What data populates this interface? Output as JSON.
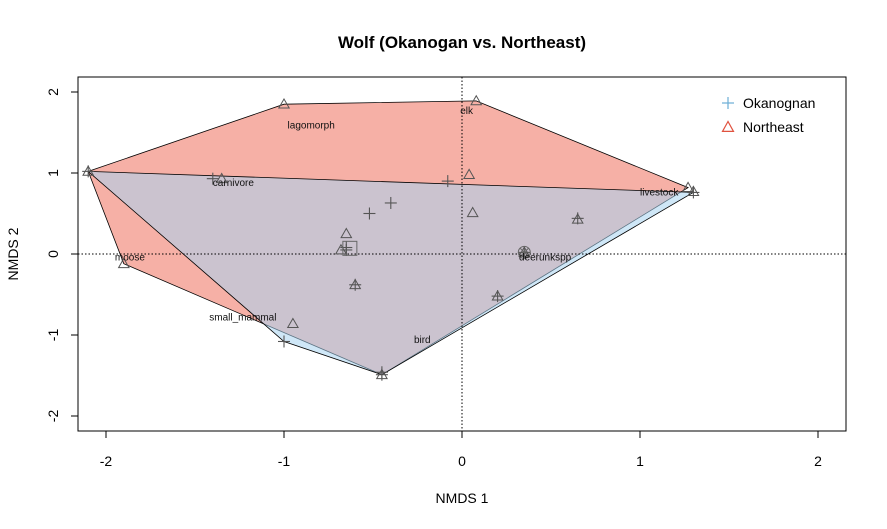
{
  "chart_data": {
    "type": "scatter",
    "title": "Wolf (Okanogan vs. Northeast)",
    "xlabel": "NMDS 1",
    "ylabel": "NMDS 2",
    "xlim": [
      -2.2,
      2.2
    ],
    "ylim": [
      -2.2,
      2.2
    ],
    "xticks": [
      "-2",
      "-1",
      "0",
      "1",
      "2"
    ],
    "xtick_values": [
      -2,
      -1,
      0,
      1,
      2
    ],
    "yticks": [
      "-2",
      "-1",
      "0",
      "1",
      "2"
    ],
    "ytick_values": [
      -2,
      -1,
      0,
      1,
      2
    ],
    "reference_lines": {
      "x": 0,
      "y": 0,
      "style": "dotted"
    },
    "legend": {
      "placement": "top-right"
    },
    "series": [
      {
        "name": "Okanognan",
        "marker": "plus",
        "color": "#6BAED6",
        "fill_color": "#A8D4F0",
        "hull": [
          [
            -2.1,
            1.02
          ],
          [
            1.3,
            0.76
          ],
          [
            -0.45,
            -1.49
          ],
          [
            -1.0,
            -1.08
          ]
        ],
        "points": [
          [
            -2.1,
            1.02
          ],
          [
            -1.0,
            -1.08
          ],
          [
            -0.45,
            -1.49
          ],
          [
            -0.45,
            -1.46
          ],
          [
            -0.4,
            0.63
          ],
          [
            -0.52,
            0.5
          ],
          [
            -0.08,
            0.9
          ],
          [
            -0.65,
            0.05
          ],
          [
            -0.6,
            -0.38
          ],
          [
            0.35,
            0.02
          ],
          [
            0.65,
            0.44
          ],
          [
            0.2,
            -0.52
          ],
          [
            1.3,
            0.76
          ],
          [
            -1.4,
            0.93
          ],
          [
            -0.65,
            0.08
          ]
        ]
      },
      {
        "name": "Northeast",
        "marker": "triangle",
        "color": "#E0523F",
        "fill_color": "#F08070",
        "hull": [
          [
            -2.1,
            1.02
          ],
          [
            -1.0,
            1.85
          ],
          [
            0.08,
            1.89
          ],
          [
            1.27,
            0.82
          ],
          [
            -0.45,
            -1.49
          ],
          [
            -1.9,
            -0.12
          ]
        ],
        "points": [
          [
            -2.1,
            1.02
          ],
          [
            -1.0,
            1.85
          ],
          [
            0.08,
            1.89
          ],
          [
            1.27,
            0.82
          ],
          [
            1.3,
            0.77
          ],
          [
            -0.45,
            -1.49
          ],
          [
            -1.9,
            -0.12
          ],
          [
            -1.35,
            0.93
          ],
          [
            0.04,
            0.98
          ],
          [
            0.06,
            0.51
          ],
          [
            0.65,
            0.43
          ],
          [
            0.2,
            -0.52
          ],
          [
            -0.95,
            -0.86
          ],
          [
            -0.65,
            0.25
          ],
          [
            -0.68,
            0.05
          ],
          [
            -0.6,
            -0.38
          ],
          [
            0.35,
            0.02
          ]
        ]
      }
    ],
    "overlay_markers": [
      {
        "type": "square",
        "at": [
          -0.63,
          0.07
        ]
      },
      {
        "type": "circle-x",
        "at": [
          0.35,
          0.02
        ]
      }
    ],
    "species_labels": [
      {
        "text": "lagomorph",
        "at": [
          -0.98,
          1.55
        ]
      },
      {
        "text": "elk",
        "at": [
          -0.01,
          1.73
        ]
      },
      {
        "text": "carnivore",
        "at": [
          -1.4,
          0.84
        ]
      },
      {
        "text": "livestock",
        "at": [
          1.0,
          0.72
        ]
      },
      {
        "text": "moose",
        "at": [
          -1.95,
          -0.08
        ]
      },
      {
        "text": "deerunkspp",
        "at": [
          0.32,
          -0.08
        ]
      },
      {
        "text": "small_mammal",
        "at": [
          -1.42,
          -0.82
        ]
      },
      {
        "text": "bird",
        "at": [
          -0.27,
          -1.1
        ]
      }
    ]
  }
}
